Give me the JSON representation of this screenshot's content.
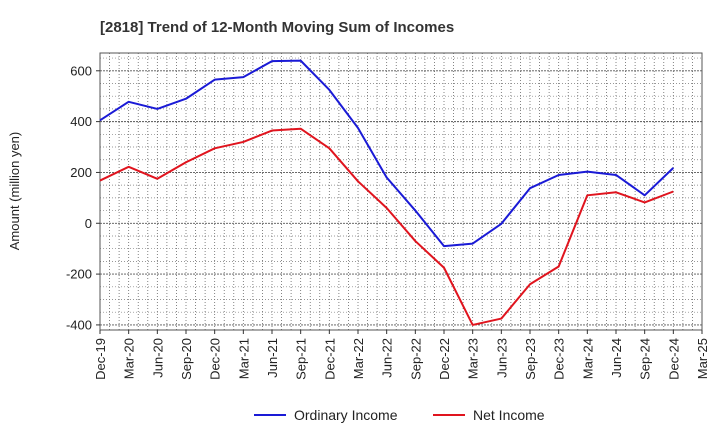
{
  "chart_data": {
    "type": "line",
    "title": "[2818]  Trend of 12-Month Moving Sum of Incomes",
    "xlabel": "",
    "ylabel": "Amount (million yen)",
    "ylim": [
      -420,
      670
    ],
    "yticks": [
      -400,
      -200,
      0,
      200,
      400,
      600
    ],
    "categories": [
      "Dec-19",
      "Mar-20",
      "Jun-20",
      "Sep-20",
      "Dec-20",
      "Mar-21",
      "Jun-21",
      "Sep-21",
      "Dec-21",
      "Mar-22",
      "Jun-22",
      "Sep-22",
      "Dec-22",
      "Mar-23",
      "Jun-23",
      "Sep-23",
      "Dec-23",
      "Mar-24",
      "Jun-24",
      "Sep-24",
      "Dec-24",
      "Mar-25"
    ],
    "series": [
      {
        "name": "Ordinary Income",
        "color": "#1a1ad6",
        "values": [
          405,
          478,
          450,
          490,
          565,
          575,
          638,
          640,
          525,
          375,
          180,
          50,
          -90,
          -80,
          -2,
          138,
          190,
          203,
          190,
          110,
          218,
          null
        ]
      },
      {
        "name": "Net Income",
        "color": "#e0141e",
        "values": [
          168,
          222,
          175,
          240,
          295,
          320,
          365,
          372,
          295,
          165,
          60,
          -70,
          -175,
          -400,
          -375,
          -240,
          -170,
          110,
          122,
          82,
          125,
          null
        ]
      }
    ],
    "grid": true,
    "legend": "bottom-center"
  }
}
